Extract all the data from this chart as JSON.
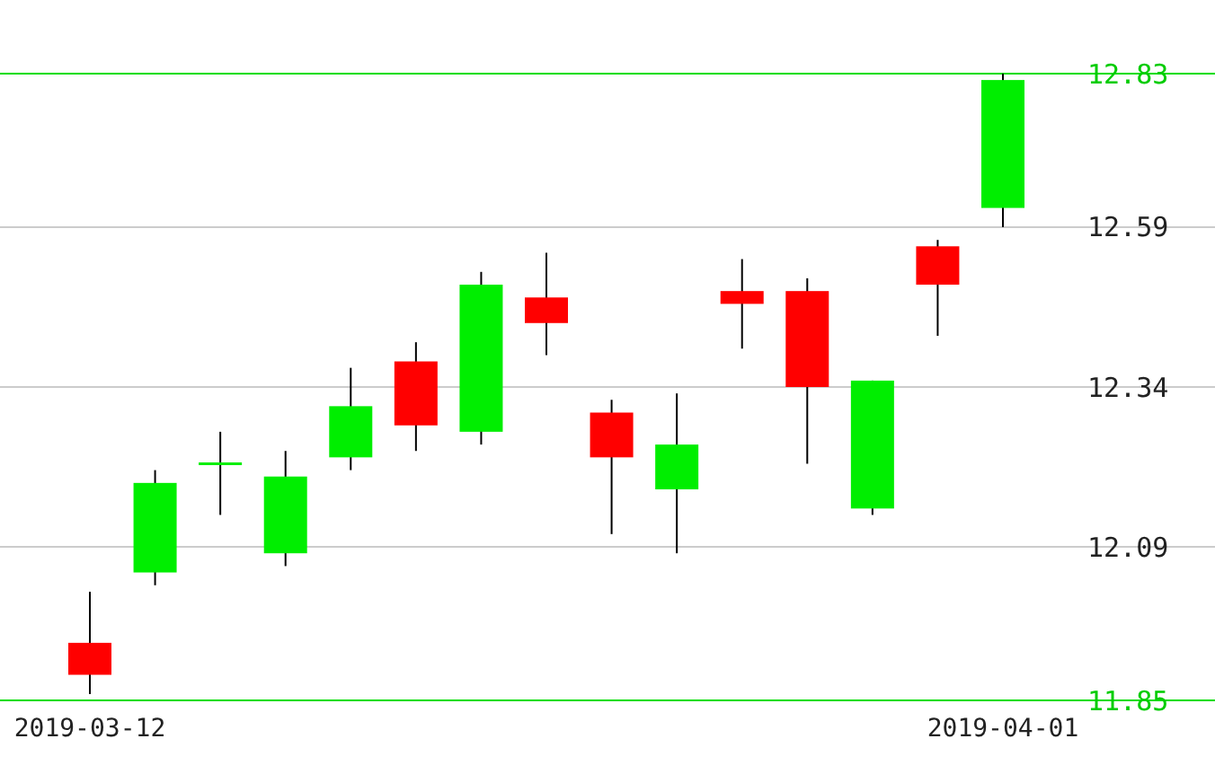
{
  "chart_data": {
    "type": "candlestick",
    "categories": [
      "2019-03-12",
      null,
      null,
      null,
      null,
      null,
      null,
      null,
      null,
      null,
      null,
      null,
      null,
      null,
      "2019-04-01"
    ],
    "ohlc": [
      [
        11.94,
        12.02,
        11.86,
        11.89
      ],
      [
        12.05,
        12.21,
        12.03,
        12.19
      ],
      [
        12.22,
        12.27,
        12.14,
        12.22
      ],
      [
        12.08,
        12.24,
        12.06,
        12.2
      ],
      [
        12.23,
        12.37,
        12.21,
        12.31
      ],
      [
        12.38,
        12.41,
        12.24,
        12.28
      ],
      [
        12.27,
        12.52,
        12.25,
        12.5
      ],
      [
        12.48,
        12.55,
        12.39,
        12.44
      ],
      [
        12.3,
        12.32,
        12.11,
        12.23
      ],
      [
        12.18,
        12.33,
        12.08,
        12.25
      ],
      [
        12.49,
        12.54,
        12.4,
        12.47
      ],
      [
        12.49,
        12.51,
        12.22,
        12.34
      ],
      [
        12.15,
        12.35,
        12.14,
        12.35
      ],
      [
        12.56,
        12.57,
        12.42,
        12.5
      ],
      [
        12.62,
        12.83,
        12.59,
        12.82
      ]
    ],
    "colors": [
      "#ff0000",
      "#00ee00",
      "#00ee00",
      "#00ee00",
      "#00ee00",
      "#ff0000",
      "#00ee00",
      "#ff0000",
      "#ff0000",
      "#00ee00",
      "#ff0000",
      "#ff0000",
      "#00ee00",
      "#ff0000",
      "#00ee00"
    ],
    "ylim": [
      11.85,
      12.83
    ],
    "yticks": [
      11.85,
      12.09,
      12.34,
      12.59,
      12.83
    ],
    "grid": true
  }
}
